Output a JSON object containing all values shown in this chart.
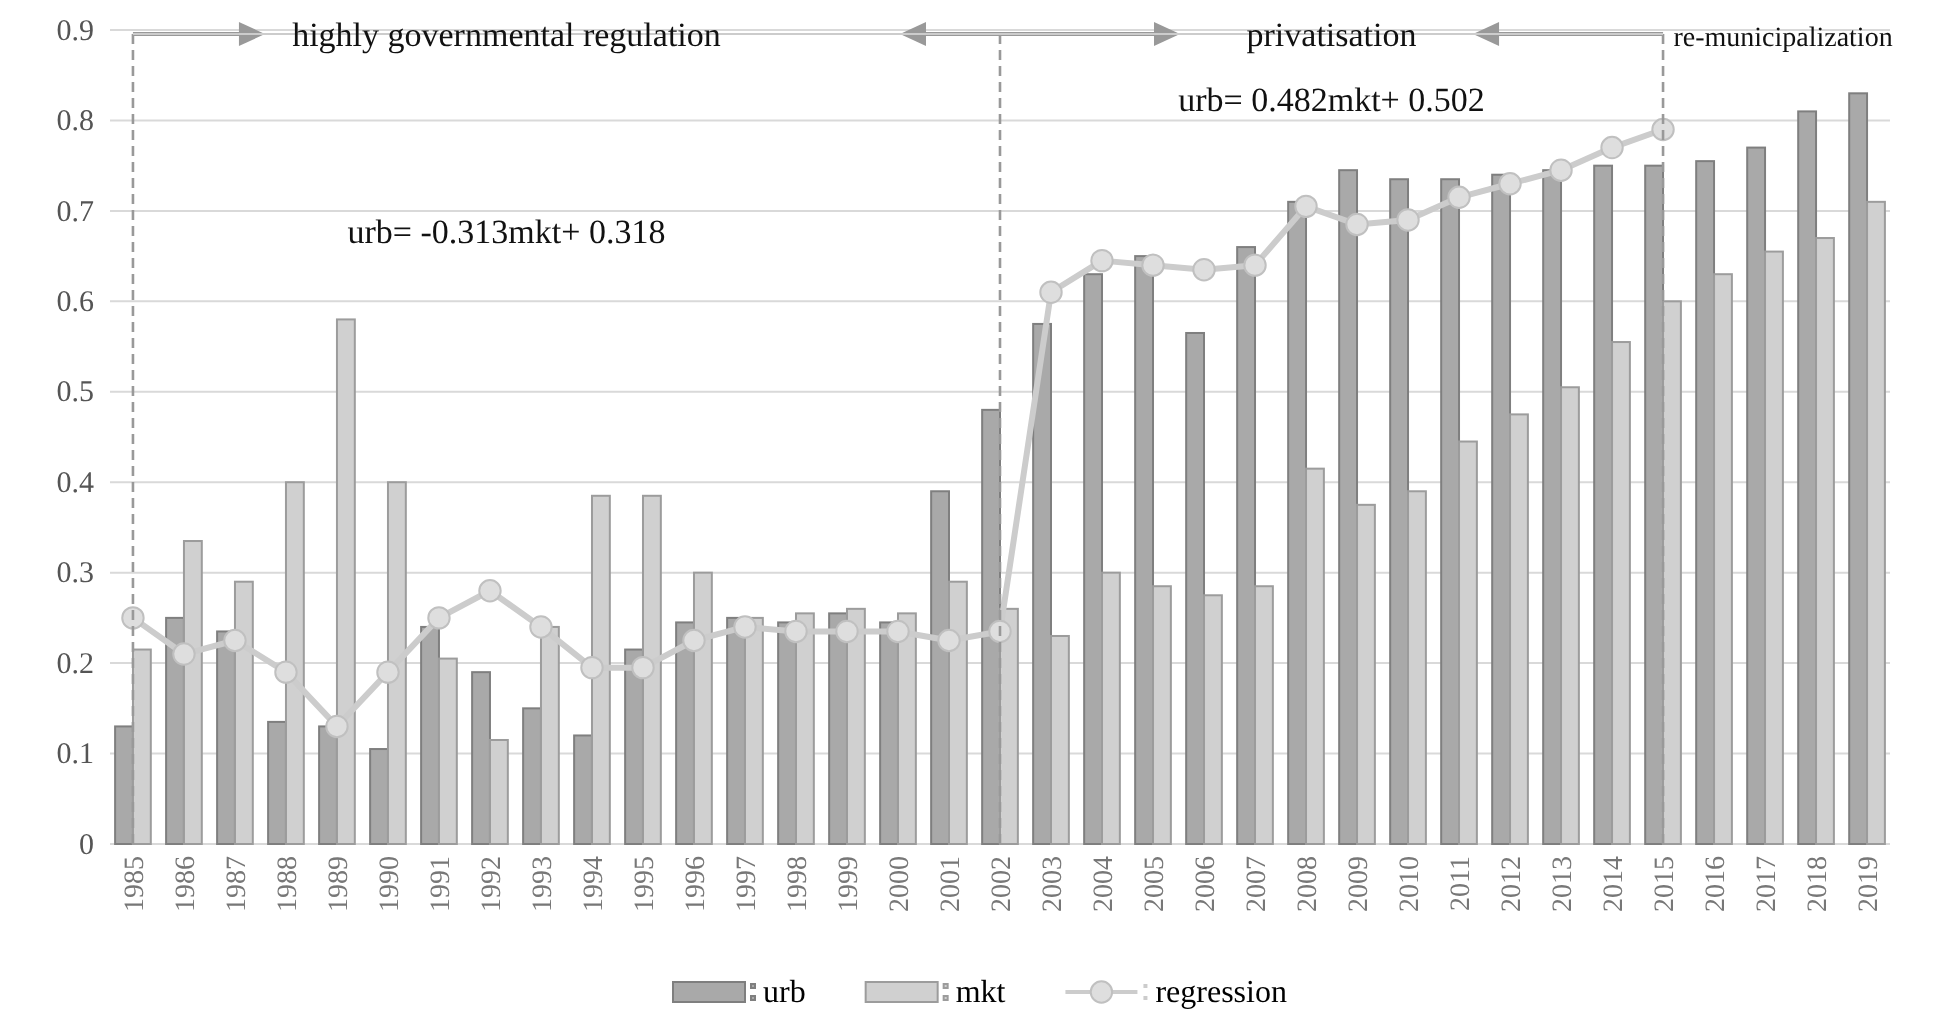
{
  "chart_data": {
    "type": "bar",
    "categories": [
      "1985",
      "1986",
      "1987",
      "1988",
      "1989",
      "1990",
      "1991",
      "1992",
      "1993",
      "1994",
      "1995",
      "1996",
      "1997",
      "1998",
      "1999",
      "2000",
      "2001",
      "2002",
      "2003",
      "2004",
      "2005",
      "2006",
      "2007",
      "2008",
      "2009",
      "2010",
      "2011",
      "2012",
      "2013",
      "2014",
      "2015",
      "2016",
      "2017",
      "2018",
      "2019"
    ],
    "series": [
      {
        "name": "urb",
        "color": "#a9a9a9",
        "values": [
          0.13,
          0.25,
          0.235,
          0.135,
          0.13,
          0.105,
          0.24,
          0.19,
          0.15,
          0.12,
          0.215,
          0.245,
          0.25,
          0.245,
          0.255,
          0.245,
          0.39,
          0.48,
          0.575,
          0.63,
          0.65,
          0.565,
          0.66,
          0.71,
          0.745,
          0.735,
          0.735,
          0.74,
          0.745,
          0.75,
          0.75,
          0.755,
          0.77,
          0.81,
          0.83
        ]
      },
      {
        "name": "mkt",
        "color": "#d0d0d0",
        "values": [
          0.215,
          0.335,
          0.29,
          0.4,
          0.58,
          0.4,
          0.205,
          0.115,
          0.24,
          0.385,
          0.385,
          0.3,
          0.25,
          0.255,
          0.26,
          0.255,
          0.29,
          0.26,
          0.23,
          0.3,
          0.285,
          0.275,
          0.285,
          0.415,
          0.375,
          0.39,
          0.445,
          0.475,
          0.505,
          0.555,
          0.6,
          0.63,
          0.655,
          0.67,
          0.71
        ]
      },
      {
        "name": "regression",
        "type": "line",
        "color": "#cccccc",
        "values": [
          0.25,
          0.21,
          0.225,
          0.19,
          0.13,
          0.19,
          0.25,
          0.28,
          0.24,
          0.195,
          0.195,
          0.225,
          0.24,
          0.235,
          0.235,
          0.235,
          0.225,
          0.235,
          0.61,
          0.645,
          0.64,
          0.635,
          0.64,
          0.705,
          0.685,
          0.69,
          0.715,
          0.73,
          0.745,
          0.77,
          0.79,
          null,
          null,
          null,
          null
        ]
      }
    ],
    "ylim": [
      0,
      0.9
    ],
    "yticks": [
      0,
      0.1,
      0.2,
      0.3,
      0.4,
      0.5,
      0.6,
      0.7,
      0.8,
      0.9
    ],
    "grid": "y",
    "legend": "bottom",
    "marker": "circle",
    "ref_lines": [
      {
        "axis": "x",
        "value": "1985",
        "color": "#999999",
        "line_style": "dashed"
      },
      {
        "axis": "x",
        "value": "2002",
        "color": "#999999",
        "line_style": "dashed"
      },
      {
        "axis": "x",
        "value": "2015",
        "color": "#999999",
        "line_style": "dashed"
      }
    ],
    "annotations": [
      "highly governmental regulation",
      "privatisation",
      "re-municipalization",
      "urb= -0.313mkt+ 0.318",
      "urb= 0.482mkt+ 0.502"
    ]
  }
}
